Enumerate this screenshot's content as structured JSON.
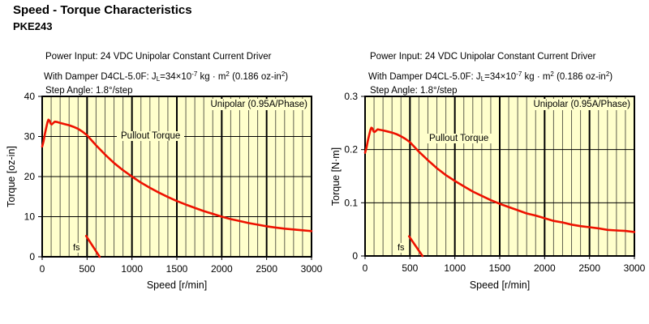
{
  "page": {
    "title": "Speed - Torque Characteristics",
    "model": "PKE243"
  },
  "header": {
    "power": "Power Input: 24 VDC",
    "driver": "Unipolar Constant Current Driver",
    "damper_parts": {
      "p1": "With Damper D4CL-5.0F: J",
      "sub": "L",
      "p2": "=34×10",
      "sup1": "-7",
      "p3": " kg · m",
      "sup2": "2",
      "p4": " (0.186 oz-in",
      "sup3": "2",
      "p5": ")"
    },
    "step": "Step Angle: 1.8°/step"
  },
  "chart_data": [
    {
      "type": "line",
      "xlabel": "Speed [r/min]",
      "ylabel": "Torque [oz-in]",
      "xlim": [
        0,
        3000
      ],
      "ylim": [
        0,
        40
      ],
      "x_major_ticks": [
        0,
        500,
        1000,
        1500,
        2000,
        2500,
        3000
      ],
      "x_minor_step": 100,
      "y_ticks": [
        0,
        10,
        20,
        30,
        40
      ],
      "grid": true,
      "legend": "Unipolar (0.95A/Phase)",
      "legend_position": "top-right-inside",
      "curve_label": "Pullout Torque",
      "fs_label": "fs",
      "colors": {
        "plot_bg": "#ffffcc",
        "minor_grid": "#60604e",
        "major_grid": "#000000",
        "curve": "#ee1100"
      },
      "series": [
        {
          "name": "pullout-torque",
          "points": [
            [
              0,
              27.5
            ],
            [
              15,
              28.8
            ],
            [
              30,
              30.6
            ],
            [
              45,
              32.2
            ],
            [
              60,
              33.6
            ],
            [
              70,
              34.2
            ],
            [
              80,
              34.0
            ],
            [
              95,
              33.2
            ],
            [
              105,
              33.0
            ],
            [
              120,
              33.3
            ],
            [
              140,
              33.7
            ],
            [
              170,
              33.6
            ],
            [
              200,
              33.4
            ],
            [
              250,
              33.1
            ],
            [
              300,
              32.8
            ],
            [
              350,
              32.4
            ],
            [
              400,
              31.9
            ],
            [
              450,
              31.2
            ],
            [
              500,
              30.3
            ],
            [
              600,
              27.8
            ],
            [
              700,
              25.5
            ],
            [
              800,
              23.4
            ],
            [
              900,
              21.6
            ],
            [
              1000,
              20.0
            ],
            [
              1100,
              18.5
            ],
            [
              1200,
              17.2
            ],
            [
              1300,
              16.0
            ],
            [
              1400,
              14.9
            ],
            [
              1500,
              13.9
            ],
            [
              1600,
              13.0
            ],
            [
              1700,
              12.2
            ],
            [
              1800,
              11.4
            ],
            [
              1900,
              10.7
            ],
            [
              2000,
              10.0
            ],
            [
              2100,
              9.4
            ],
            [
              2200,
              8.9
            ],
            [
              2300,
              8.4
            ],
            [
              2400,
              8.0
            ],
            [
              2500,
              7.6
            ],
            [
              2600,
              7.3
            ],
            [
              2700,
              7.0
            ],
            [
              2800,
              6.8
            ],
            [
              2900,
              6.6
            ],
            [
              3000,
              6.4
            ]
          ]
        },
        {
          "name": "fs-boundary",
          "points": [
            [
              490,
              5.2
            ],
            [
              640,
              0
            ]
          ]
        }
      ]
    },
    {
      "type": "line",
      "xlabel": "Speed [r/min]",
      "ylabel": "Torque [N·m]",
      "xlim": [
        0,
        3000
      ],
      "ylim": [
        0,
        0.3
      ],
      "x_major_ticks": [
        0,
        500,
        1000,
        1500,
        2000,
        2500,
        3000
      ],
      "x_minor_step": 100,
      "y_ticks": [
        0,
        0.1,
        0.2,
        0.3
      ],
      "grid": true,
      "legend": "Unipolar (0.95A/Phase)",
      "legend_position": "top-right-inside",
      "curve_label": "Pullout Torque",
      "fs_label": "fs",
      "colors": {
        "plot_bg": "#ffffcc",
        "minor_grid": "#60604e",
        "major_grid": "#000000",
        "curve": "#ee1100"
      },
      "series": [
        {
          "name": "pullout-torque",
          "points": [
            [
              0,
              0.194
            ],
            [
              15,
              0.203
            ],
            [
              30,
              0.216
            ],
            [
              45,
              0.227
            ],
            [
              60,
              0.237
            ],
            [
              70,
              0.241
            ],
            [
              80,
              0.24
            ],
            [
              95,
              0.234
            ],
            [
              105,
              0.233
            ],
            [
              120,
              0.235
            ],
            [
              140,
              0.238
            ],
            [
              170,
              0.237
            ],
            [
              200,
              0.236
            ],
            [
              250,
              0.234
            ],
            [
              300,
              0.232
            ],
            [
              350,
              0.229
            ],
            [
              400,
              0.225
            ],
            [
              450,
              0.22
            ],
            [
              500,
              0.214
            ],
            [
              600,
              0.196
            ],
            [
              700,
              0.18
            ],
            [
              800,
              0.165
            ],
            [
              900,
              0.152
            ],
            [
              1000,
              0.141
            ],
            [
              1100,
              0.131
            ],
            [
              1200,
              0.121
            ],
            [
              1300,
              0.113
            ],
            [
              1400,
              0.105
            ],
            [
              1500,
              0.098
            ],
            [
              1600,
              0.092
            ],
            [
              1700,
              0.086
            ],
            [
              1800,
              0.08
            ],
            [
              1900,
              0.076
            ],
            [
              2000,
              0.071
            ],
            [
              2100,
              0.066
            ],
            [
              2200,
              0.063
            ],
            [
              2300,
              0.059
            ],
            [
              2400,
              0.056
            ],
            [
              2500,
              0.054
            ],
            [
              2600,
              0.052
            ],
            [
              2700,
              0.049
            ],
            [
              2800,
              0.048
            ],
            [
              2900,
              0.047
            ],
            [
              3000,
              0.045
            ]
          ]
        },
        {
          "name": "fs-boundary",
          "points": [
            [
              490,
              0.037
            ],
            [
              640,
              0
            ]
          ]
        }
      ]
    }
  ]
}
